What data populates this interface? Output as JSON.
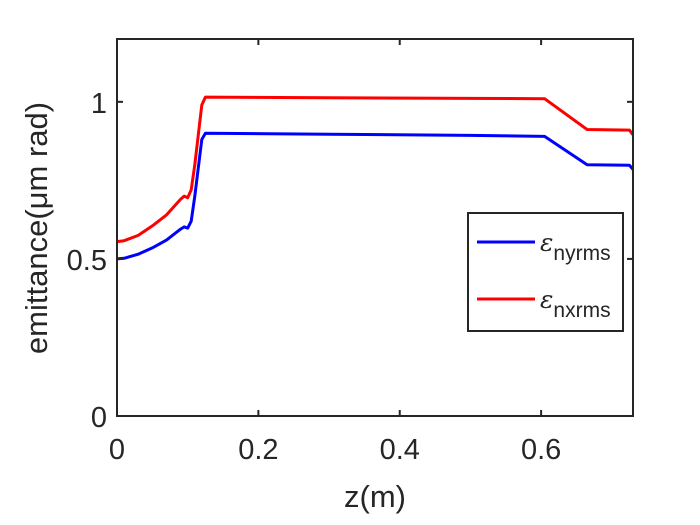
{
  "chart_data": {
    "type": "line",
    "title": "",
    "xlabel": "z(m)",
    "ylabel": "emittance(μm rad)",
    "xlim": [
      0,
      0.73
    ],
    "ylim": [
      0,
      1.2
    ],
    "xticks": [
      0,
      0.2,
      0.4,
      0.6
    ],
    "xtick_labels": [
      "0",
      "0.2",
      "0.4",
      "0.6"
    ],
    "yticks": [
      0,
      0.5,
      1
    ],
    "ytick_labels": [
      "0",
      "0.5",
      "1"
    ],
    "grid": false,
    "legend_position": "right",
    "series": [
      {
        "name": "ε nyrms",
        "symbol": "ε",
        "subscript": "nyrms",
        "color": "#0000ff",
        "x": [
          0,
          0.01,
          0.03,
          0.05,
          0.07,
          0.09,
          0.095,
          0.1,
          0.105,
          0.11,
          0.12,
          0.125,
          0.3,
          0.5,
          0.605,
          0.665,
          0.725,
          0.73
        ],
        "y": [
          0.5,
          0.502,
          0.515,
          0.535,
          0.56,
          0.595,
          0.602,
          0.598,
          0.62,
          0.7,
          0.88,
          0.9,
          0.897,
          0.893,
          0.89,
          0.8,
          0.798,
          0.785
        ]
      },
      {
        "name": "ε nxrms",
        "symbol": "ε",
        "subscript": "nxrms",
        "color": "#ff0000",
        "x": [
          0,
          0.01,
          0.03,
          0.05,
          0.07,
          0.09,
          0.095,
          0.1,
          0.105,
          0.11,
          0.12,
          0.125,
          0.3,
          0.5,
          0.605,
          0.665,
          0.725,
          0.73
        ],
        "y": [
          0.555,
          0.558,
          0.575,
          0.605,
          0.64,
          0.69,
          0.7,
          0.695,
          0.72,
          0.8,
          0.99,
          1.015,
          1.013,
          1.011,
          1.01,
          0.912,
          0.91,
          0.895
        ]
      }
    ]
  }
}
